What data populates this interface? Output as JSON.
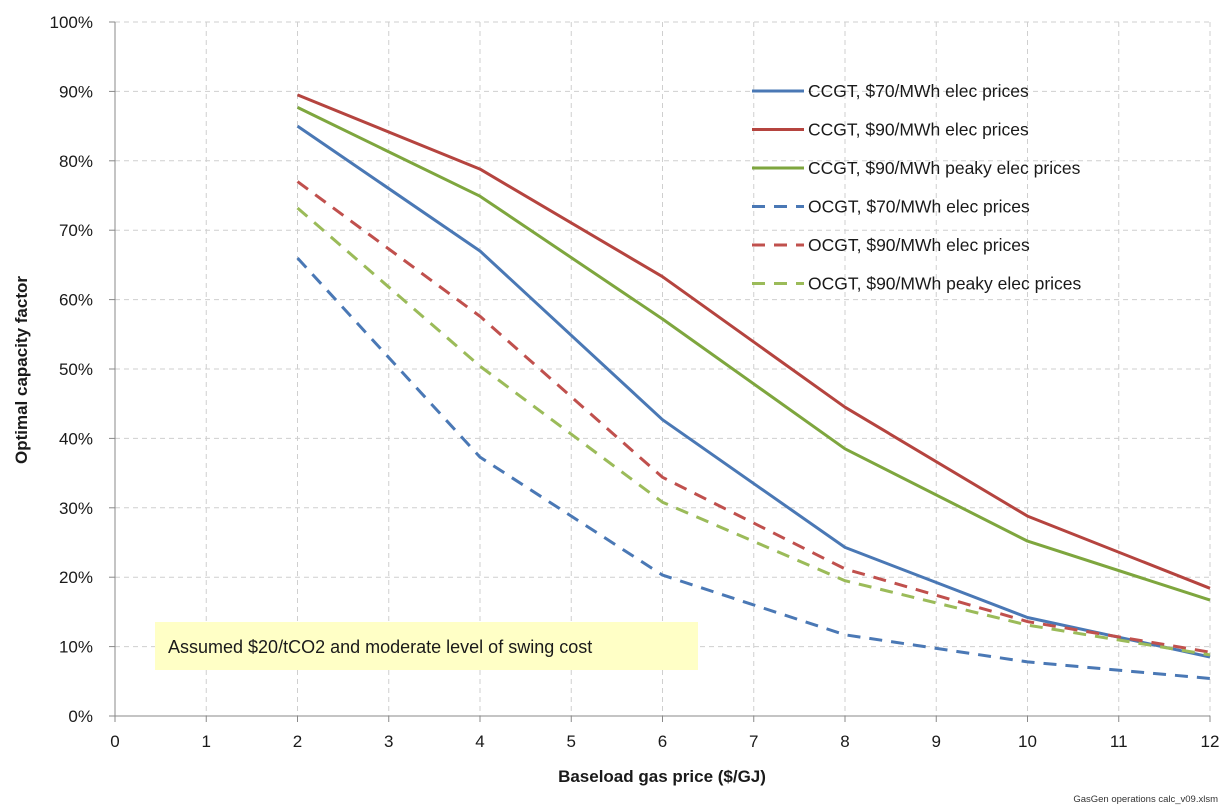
{
  "chart_data": {
    "type": "line",
    "title": "",
    "xlabel": "Baseload gas price ($/GJ)",
    "ylabel": "Optimal capacity factor",
    "xlim": [
      0,
      12
    ],
    "ylim": [
      0,
      100
    ],
    "x_ticks": [
      "0",
      "1",
      "2",
      "3",
      "4",
      "5",
      "6",
      "7",
      "8",
      "9",
      "10",
      "11",
      "12"
    ],
    "y_ticks": [
      "0%",
      "10%",
      "20%",
      "30%",
      "40%",
      "50%",
      "60%",
      "70%",
      "80%",
      "90%",
      "100%"
    ],
    "grid": true,
    "legend_position": "top-right",
    "annotation": "Assumed $20/tCO2 and moderate level of swing cost",
    "footer": "GasGen operations calc_v09.xlsm",
    "series": [
      {
        "name": "CCGT, $70/MWh elec prices",
        "style": "solid",
        "color": "#4a78b5",
        "x": [
          2,
          4,
          6,
          8,
          10,
          12
        ],
        "y": [
          85,
          67,
          42.7,
          24.3,
          14.2,
          8.5
        ]
      },
      {
        "name": "CCGT, $90/MWh elec prices",
        "style": "solid",
        "color": "#b5443f",
        "x": [
          2,
          4,
          6,
          8,
          10,
          12
        ],
        "y": [
          89.5,
          78.8,
          63.3,
          44.5,
          28.8,
          18.4
        ]
      },
      {
        "name": "CCGT, $90/MWh peaky elec prices",
        "style": "solid",
        "color": "#7ea63e",
        "x": [
          2,
          4,
          6,
          8,
          10,
          12
        ],
        "y": [
          87.7,
          74.9,
          57.2,
          38.5,
          25.2,
          16.7
        ]
      },
      {
        "name": "OCGT, $70/MWh elec prices",
        "style": "dashed",
        "color": "#4a78b5",
        "x": [
          2,
          4,
          6,
          8,
          10,
          12
        ],
        "y": [
          66,
          37.3,
          20.3,
          11.7,
          7.8,
          5.4
        ]
      },
      {
        "name": "OCGT, $90/MWh elec prices",
        "style": "dashed",
        "color": "#c0504d",
        "x": [
          2,
          4,
          6,
          8,
          10,
          12
        ],
        "y": [
          77,
          57.6,
          34.4,
          21.2,
          13.6,
          9.2
        ]
      },
      {
        "name": "OCGT, $90/MWh peaky elec prices",
        "style": "dashed",
        "color": "#9bbb59",
        "x": [
          2,
          4,
          6,
          8,
          10,
          12
        ],
        "y": [
          73.2,
          50.4,
          30.8,
          19.5,
          13.1,
          8.8
        ]
      }
    ]
  }
}
